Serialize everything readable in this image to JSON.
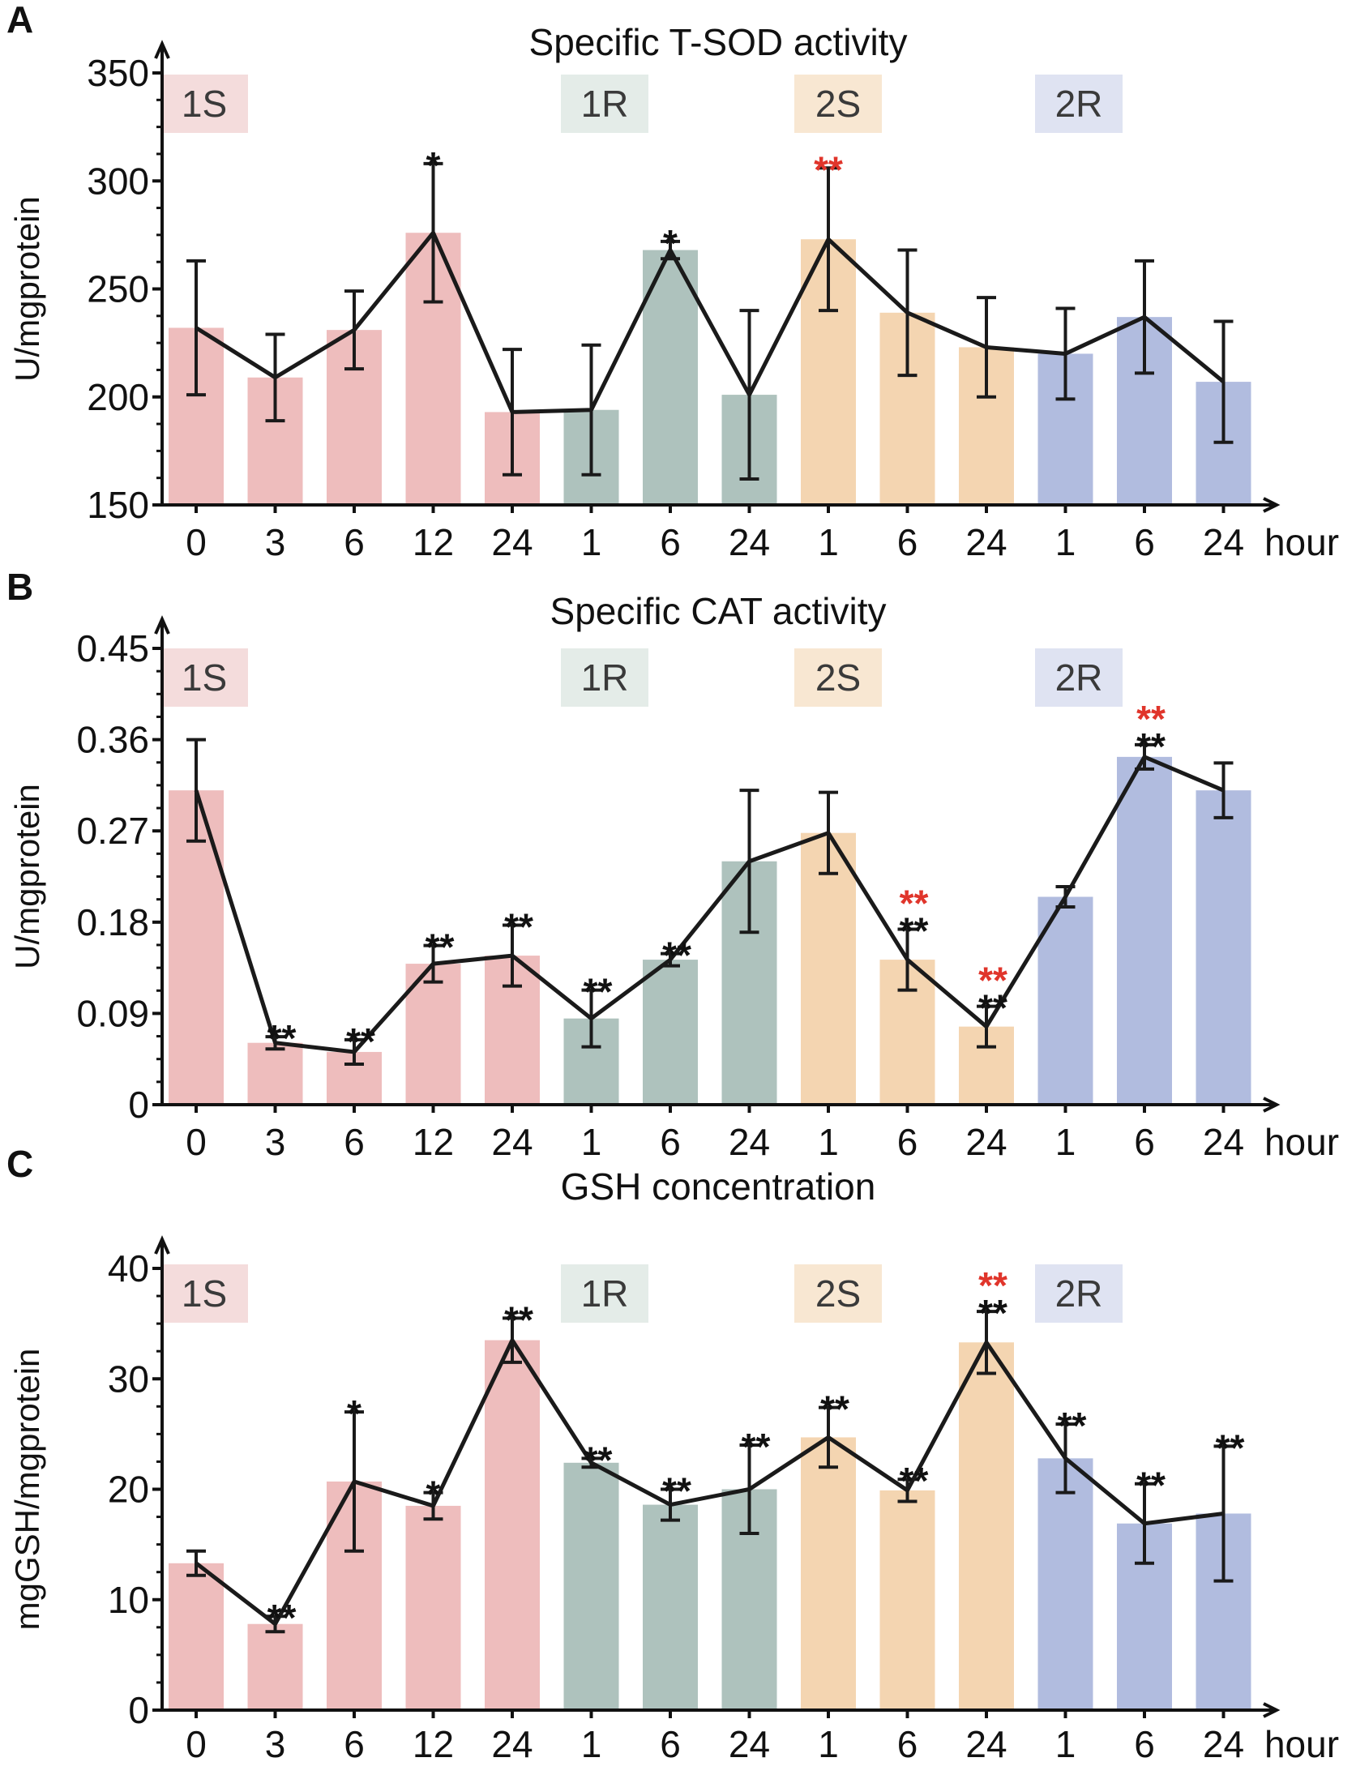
{
  "chart_data": [
    {
      "panel": "A",
      "type": "bar",
      "title": "Specific T-SOD activity",
      "ylabel": "U/mgprotein",
      "xunit": "hour",
      "ylim": [
        150,
        350
      ],
      "yticks": [
        "150",
        "200",
        "250",
        "300",
        "350"
      ],
      "ytick_values": [
        150,
        200,
        250,
        300,
        350
      ],
      "categories": [
        "0",
        "3",
        "6",
        "12",
        "24",
        "1",
        "6",
        "24",
        "1",
        "6",
        "24",
        "1",
        "6",
        "24"
      ],
      "group_of_bar": [
        0,
        0,
        0,
        0,
        0,
        1,
        1,
        1,
        2,
        2,
        2,
        3,
        3,
        3
      ],
      "values": [
        232,
        209,
        231,
        276,
        193,
        194,
        268,
        201,
        273,
        239,
        223,
        220,
        237,
        207
      ],
      "errors": [
        31,
        20,
        18,
        32,
        29,
        30,
        4,
        39,
        33,
        29,
        23,
        21,
        26,
        28
      ],
      "stars_black": [
        "",
        "",
        "",
        "*",
        "",
        "",
        "*",
        "",
        "",
        "",
        "",
        "",
        "",
        ""
      ],
      "stars_red": [
        "",
        "",
        "",
        "",
        "",
        "",
        "",
        "",
        "**",
        "",
        "",
        "",
        "",
        ""
      ],
      "groups": [
        "1S",
        "1R",
        "2S",
        "2R"
      ]
    },
    {
      "panel": "B",
      "type": "bar",
      "title": "Specific CAT activity",
      "ylabel": "U/mgprotein",
      "xunit": "hour",
      "ylim": [
        0,
        0.45
      ],
      "yticks": [
        "0",
        "0.09",
        "0.18",
        "0.27",
        "0.36",
        "0.45"
      ],
      "ytick_values": [
        0,
        0.09,
        0.18,
        0.27,
        0.36,
        0.45
      ],
      "categories": [
        "0",
        "3",
        "6",
        "12",
        "24",
        "1",
        "6",
        "24",
        "1",
        "6",
        "24",
        "1",
        "6",
        "24"
      ],
      "group_of_bar": [
        0,
        0,
        0,
        0,
        0,
        1,
        1,
        1,
        2,
        2,
        2,
        3,
        3,
        3
      ],
      "values": [
        0.31,
        0.061,
        0.052,
        0.139,
        0.147,
        0.085,
        0.143,
        0.24,
        0.268,
        0.143,
        0.077,
        0.205,
        0.343,
        0.31
      ],
      "errors": [
        0.05,
        0.006,
        0.012,
        0.018,
        0.03,
        0.028,
        0.006,
        0.07,
        0.04,
        0.03,
        0.02,
        0.01,
        0.012,
        0.027
      ],
      "stars_black": [
        "",
        "**",
        "**",
        "**",
        "**",
        "**",
        "**",
        "",
        "",
        "**",
        "**",
        "",
        "**",
        ""
      ],
      "stars_red": [
        "",
        "",
        "",
        "",
        "",
        "",
        "",
        "",
        "",
        "**",
        "**",
        "",
        "**",
        ""
      ],
      "groups": [
        "1S",
        "1R",
        "2S",
        "2R"
      ]
    },
    {
      "panel": "C",
      "type": "bar",
      "title": "GSH concentration",
      "ylabel": "mgGSH/mgprotein",
      "xunit": "hour",
      "ylim": [
        0,
        40
      ],
      "yticks": [
        "0",
        "10",
        "20",
        "30",
        "40"
      ],
      "ytick_values": [
        0,
        10,
        20,
        30,
        40
      ],
      "categories": [
        "0",
        "3",
        "6",
        "12",
        "24",
        "1",
        "6",
        "24",
        "1",
        "6",
        "24",
        "1",
        "6",
        "24"
      ],
      "group_of_bar": [
        0,
        0,
        0,
        0,
        0,
        1,
        1,
        1,
        2,
        2,
        2,
        3,
        3,
        3
      ],
      "values": [
        13.3,
        7.8,
        20.7,
        18.5,
        33.5,
        22.4,
        18.6,
        20.0,
        24.7,
        19.9,
        33.3,
        22.8,
        16.9,
        17.8
      ],
      "errors": [
        1.1,
        0.7,
        6.3,
        1.2,
        2.0,
        0.4,
        1.4,
        4.0,
        2.7,
        1.0,
        2.8,
        3.1,
        3.6,
        6.1
      ],
      "stars_black": [
        "",
        "**",
        "*",
        "*",
        "**",
        "**",
        "**",
        "**",
        "**",
        "**",
        "**",
        "**",
        "**",
        "**"
      ],
      "stars_red": [
        "",
        "",
        "",
        "",
        "",
        "",
        "",
        "",
        "",
        "",
        "**",
        "",
        "",
        ""
      ],
      "groups": [
        "1S",
        "1R",
        "2S",
        "2R"
      ]
    }
  ],
  "colors": {
    "bars": [
      "#eebdbd",
      "#aec2bd",
      "#f4d5b1",
      "#b1bcdf"
    ],
    "group_boxes": [
      "#f4dcdc",
      "#e4ece8",
      "#f8e7d2",
      "#dfe3f2"
    ],
    "line": "#1a1a1a",
    "star_black": "#111111",
    "star_red": "#e0352b"
  }
}
